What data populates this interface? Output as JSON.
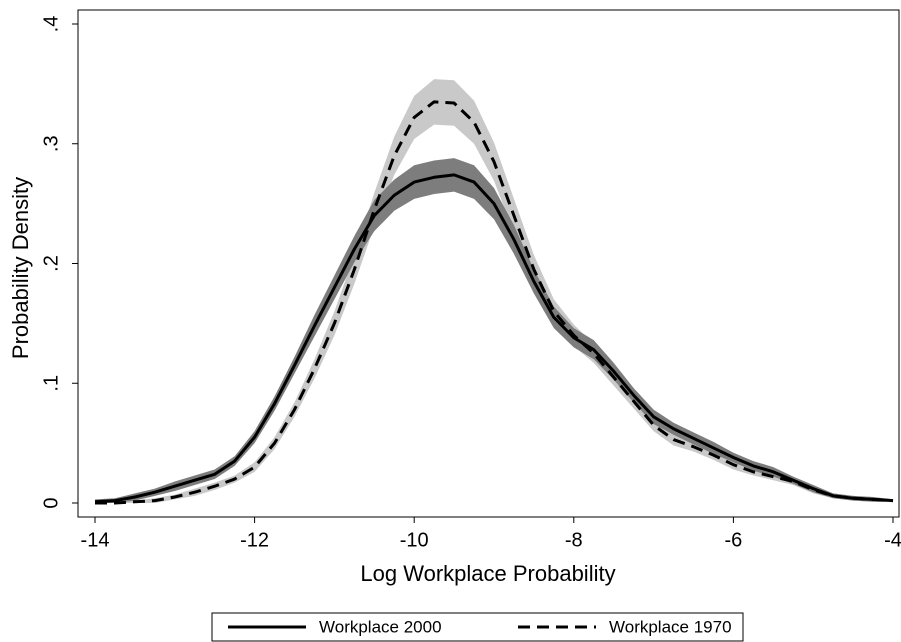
{
  "chart_data": {
    "type": "line",
    "x_label": "Log Workplace Probability",
    "y_label": "Probability Density",
    "x": [
      -14,
      -13.75,
      -13.5,
      -13.25,
      -13,
      -12.75,
      -12.5,
      -12.25,
      -12,
      -11.75,
      -11.5,
      -11.25,
      -11,
      -10.75,
      -10.5,
      -10.25,
      -10,
      -9.75,
      -9.5,
      -9.25,
      -9,
      -8.75,
      -8.5,
      -8.25,
      -8,
      -7.75,
      -7.5,
      -7.25,
      -7,
      -6.75,
      -6.5,
      -6.25,
      -6,
      -5.75,
      -5.5,
      -5.25,
      -5,
      -4.75,
      -4.5,
      -4.25,
      -4
    ],
    "series": [
      {
        "name": "Workplace 1970",
        "color": "#000000",
        "band_color": "#c9c9c9",
        "line_style": "dashed",
        "values": [
          0.0,
          0.0,
          0.001,
          0.002,
          0.005,
          0.009,
          0.014,
          0.02,
          0.03,
          0.05,
          0.078,
          0.112,
          0.15,
          0.195,
          0.245,
          0.29,
          0.322,
          0.335,
          0.334,
          0.318,
          0.285,
          0.24,
          0.195,
          0.16,
          0.14,
          0.125,
          0.105,
          0.085,
          0.065,
          0.053,
          0.047,
          0.04,
          0.032,
          0.026,
          0.022,
          0.018,
          0.011,
          0.006,
          0.004,
          0.003,
          0.002
        ],
        "ci_lower": [
          0.0,
          0.0,
          0.0,
          0.0,
          0.003,
          0.006,
          0.011,
          0.017,
          0.026,
          0.045,
          0.072,
          0.104,
          0.14,
          0.183,
          0.231,
          0.274,
          0.304,
          0.316,
          0.315,
          0.3,
          0.269,
          0.226,
          0.183,
          0.15,
          0.131,
          0.117,
          0.098,
          0.079,
          0.06,
          0.048,
          0.043,
          0.036,
          0.028,
          0.023,
          0.019,
          0.015,
          0.008,
          0.004,
          0.002,
          0.001,
          0.001
        ],
        "ci_upper": [
          0.001,
          0.001,
          0.002,
          0.004,
          0.007,
          0.012,
          0.017,
          0.023,
          0.034,
          0.055,
          0.084,
          0.12,
          0.16,
          0.207,
          0.259,
          0.306,
          0.34,
          0.354,
          0.353,
          0.336,
          0.301,
          0.254,
          0.207,
          0.17,
          0.149,
          0.133,
          0.112,
          0.091,
          0.07,
          0.058,
          0.051,
          0.044,
          0.036,
          0.029,
          0.025,
          0.021,
          0.014,
          0.008,
          0.006,
          0.005,
          0.003
        ]
      },
      {
        "name": "Workplace 2000",
        "color": "#000000",
        "band_color": "#7d7d7d",
        "line_style": "solid",
        "values": [
          0.001,
          0.002,
          0.005,
          0.009,
          0.014,
          0.019,
          0.024,
          0.035,
          0.055,
          0.083,
          0.115,
          0.148,
          0.18,
          0.212,
          0.24,
          0.257,
          0.268,
          0.272,
          0.274,
          0.268,
          0.25,
          0.22,
          0.185,
          0.155,
          0.138,
          0.128,
          0.11,
          0.09,
          0.072,
          0.062,
          0.054,
          0.046,
          0.038,
          0.031,
          0.026,
          0.019,
          0.012,
          0.006,
          0.004,
          0.003,
          0.002
        ],
        "ci_lower": [
          0.0,
          0.0,
          0.002,
          0.006,
          0.01,
          0.015,
          0.02,
          0.031,
          0.05,
          0.077,
          0.108,
          0.139,
          0.17,
          0.201,
          0.227,
          0.244,
          0.254,
          0.258,
          0.26,
          0.254,
          0.237,
          0.208,
          0.175,
          0.146,
          0.13,
          0.12,
          0.103,
          0.084,
          0.066,
          0.057,
          0.049,
          0.041,
          0.034,
          0.027,
          0.022,
          0.016,
          0.009,
          0.004,
          0.002,
          0.001,
          0.001
        ],
        "ci_upper": [
          0.003,
          0.004,
          0.008,
          0.012,
          0.018,
          0.023,
          0.028,
          0.039,
          0.06,
          0.089,
          0.122,
          0.157,
          0.19,
          0.223,
          0.253,
          0.27,
          0.282,
          0.286,
          0.288,
          0.282,
          0.263,
          0.232,
          0.195,
          0.164,
          0.146,
          0.136,
          0.117,
          0.096,
          0.078,
          0.067,
          0.059,
          0.051,
          0.042,
          0.035,
          0.03,
          0.022,
          0.015,
          0.008,
          0.006,
          0.005,
          0.003
        ]
      }
    ],
    "legend_order": [
      1,
      0
    ],
    "legend_position": "bottom",
    "xlim": [
      -14,
      -4
    ],
    "xticks": [
      -14,
      -12,
      -10,
      -8,
      -6,
      -4
    ],
    "ylim": [
      0,
      0.4
    ],
    "yticks": [
      0,
      {
        "value": 0.1,
        "label": ".1"
      },
      {
        "value": 0.2,
        "label": ".2"
      },
      {
        "value": 0.3,
        "label": ".3"
      },
      {
        "value": 0.4,
        "label": ".4"
      }
    ],
    "grid": false
  }
}
